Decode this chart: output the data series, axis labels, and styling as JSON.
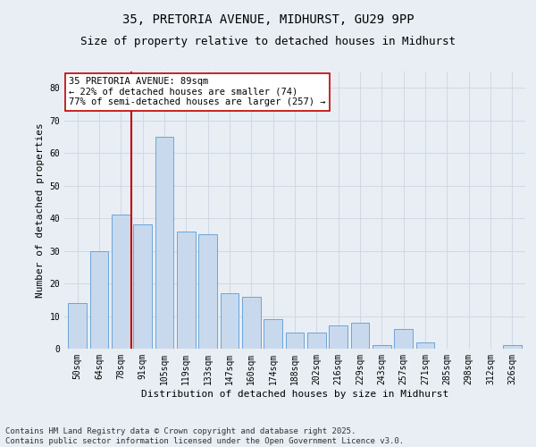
{
  "title_line1": "35, PRETORIA AVENUE, MIDHURST, GU29 9PP",
  "title_line2": "Size of property relative to detached houses in Midhurst",
  "xlabel": "Distribution of detached houses by size in Midhurst",
  "ylabel": "Number of detached properties",
  "bar_labels": [
    "50sqm",
    "64sqm",
    "78sqm",
    "91sqm",
    "105sqm",
    "119sqm",
    "133sqm",
    "147sqm",
    "160sqm",
    "174sqm",
    "188sqm",
    "202sqm",
    "216sqm",
    "229sqm",
    "243sqm",
    "257sqm",
    "271sqm",
    "285sqm",
    "298sqm",
    "312sqm",
    "326sqm"
  ],
  "bar_values": [
    14,
    30,
    41,
    38,
    65,
    36,
    35,
    17,
    16,
    9,
    5,
    5,
    7,
    8,
    1,
    6,
    2,
    0,
    0,
    0,
    1
  ],
  "bar_color": "#c9d9ed",
  "bar_edge_color": "#5b9bd5",
  "highlight_line_color": "#c00000",
  "annotation_text": "35 PRETORIA AVENUE: 89sqm\n← 22% of detached houses are smaller (74)\n77% of semi-detached houses are larger (257) →",
  "annotation_box_color": "#ffffff",
  "annotation_box_edge": "#c00000",
  "ylim": [
    0,
    85
  ],
  "yticks": [
    0,
    10,
    20,
    30,
    40,
    50,
    60,
    70,
    80
  ],
  "grid_color": "#d0d8e4",
  "background_color": "#e8eef4",
  "plot_bg_color": "#e8eef4",
  "footer_text": "Contains HM Land Registry data © Crown copyright and database right 2025.\nContains public sector information licensed under the Open Government Licence v3.0.",
  "title_fontsize": 10,
  "subtitle_fontsize": 9,
  "axis_label_fontsize": 8,
  "tick_fontsize": 7,
  "annotation_fontsize": 7.5,
  "footer_fontsize": 6.5
}
